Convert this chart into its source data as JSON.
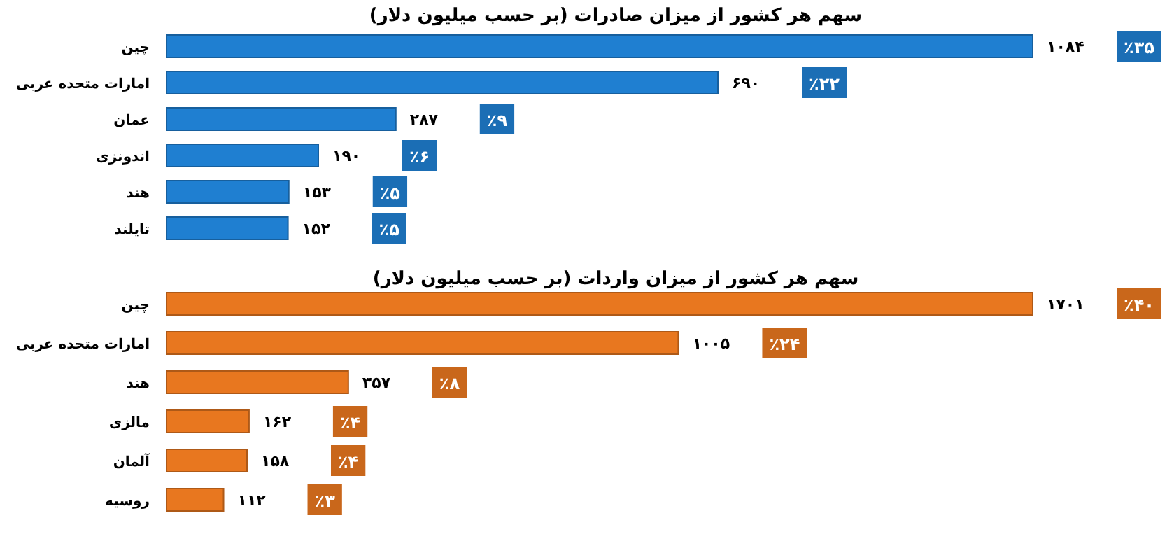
{
  "chart_data": [
    {
      "type": "bar",
      "orientation": "horizontal",
      "title": "سهم هر کشور از میزان صادرات (بر حسب میلیون دلار)",
      "categories": [
        "چین",
        "امارات متحده عربی",
        "عمان",
        "اندونزی",
        "هند",
        "تایلند"
      ],
      "values": [
        1084,
        690,
        287,
        190,
        153,
        152
      ],
      "value_labels": [
        "۱۰۸۴",
        "۶۹۰",
        "۲۸۷",
        "۱۹۰",
        "۱۵۳",
        "۱۵۲"
      ],
      "color": "#1f7fd1",
      "annotations": [
        "٪۳۵",
        "٪۲۲",
        "٪۹",
        "٪۶",
        "٪۵",
        "٪۵"
      ]
    },
    {
      "type": "bar",
      "orientation": "horizontal",
      "title": "سهم هر کشور از میزان واردات (بر حسب میلیون دلار)",
      "categories": [
        "چین",
        "امارات متحده عربی",
        "هند",
        "مالزی",
        "آلمان",
        "روسیه"
      ],
      "values": [
        1701,
        1005,
        357,
        162,
        158,
        112
      ],
      "value_labels": [
        "۱۷۰۱",
        "۱۰۰۵",
        "۳۵۷",
        "۱۶۲",
        "۱۵۸",
        "۱۱۲"
      ],
      "color": "#e8771f",
      "annotations": [
        "٪۴۰",
        "٪۲۴",
        "٪۸",
        "٪۴",
        "٪۴",
        "٪۳"
      ]
    }
  ]
}
